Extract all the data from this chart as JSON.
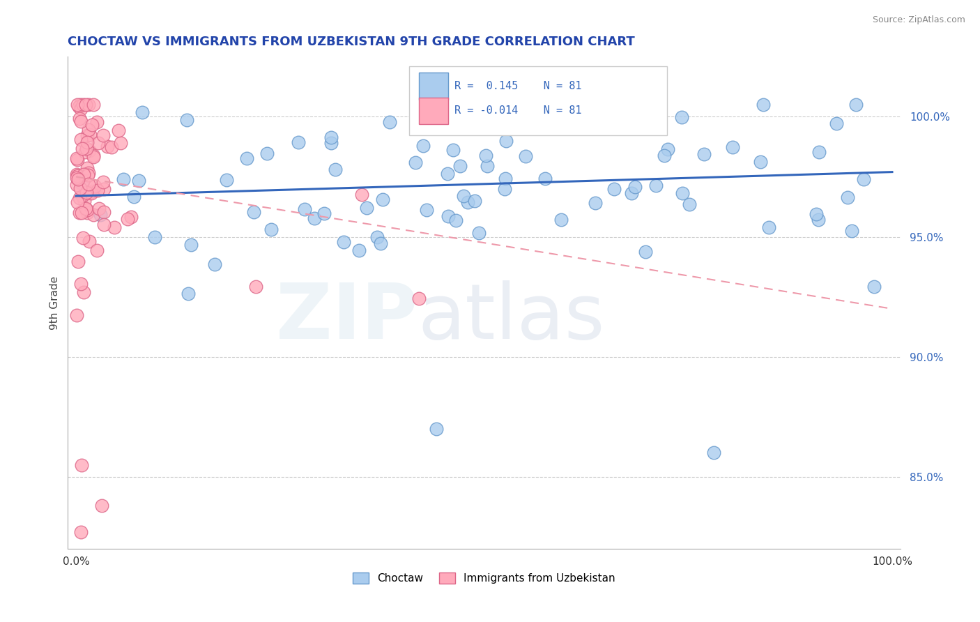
{
  "title": "CHOCTAW VS IMMIGRANTS FROM UZBEKISTAN 9TH GRADE CORRELATION CHART",
  "source": "Source: ZipAtlas.com",
  "ylabel": "9th Grade",
  "legend_label_blue": "Choctaw",
  "legend_label_pink": "Immigrants from Uzbekistan",
  "legend_r_blue": "R =  0.145",
  "legend_n_blue": "N = 81",
  "legend_r_pink": "R = -0.014",
  "legend_n_pink": "N = 81",
  "blue_color_face": "#aaccee",
  "blue_color_edge": "#6699cc",
  "pink_color_face": "#ffaabb",
  "pink_color_edge": "#dd6688",
  "blue_line_color": "#3366bb",
  "pink_line_color": "#ee99aa",
  "background_color": "#ffffff",
  "grid_color": "#cccccc",
  "title_color": "#2244aa",
  "watermark": "ZIPatlas",
  "xlim": [
    -0.01,
    1.01
  ],
  "ylim": [
    0.82,
    1.025
  ],
  "yticks": [
    0.85,
    0.9,
    0.95,
    1.0
  ],
  "ytick_labels": [
    "85.0%",
    "90.0%",
    "95.0%",
    "100.0%"
  ]
}
